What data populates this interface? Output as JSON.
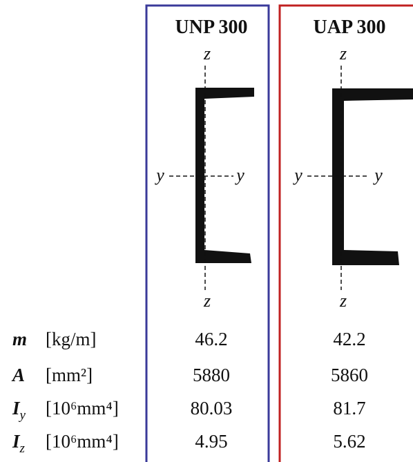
{
  "columns": [
    "UNP 300",
    "UAP 300"
  ],
  "axes": {
    "z": "z",
    "y": "y"
  },
  "rows": [
    {
      "symbol": "m",
      "unit": "[kg/m]",
      "values": [
        "46.2",
        "42.2"
      ]
    },
    {
      "symbol": "A",
      "unit": "[mm²]",
      "values": [
        "5880",
        "5860"
      ]
    },
    {
      "symbol": "I",
      "subscript": "y",
      "unit": "[10⁶mm⁴]",
      "values": [
        "80.03",
        "81.7"
      ]
    },
    {
      "symbol": "I",
      "subscript": "z",
      "unit": "[10⁶mm⁴]",
      "values": [
        "4.95",
        "5.62"
      ]
    }
  ]
}
